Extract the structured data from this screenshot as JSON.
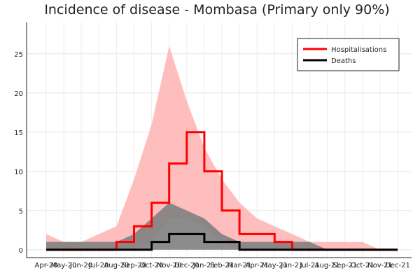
{
  "chart_data": {
    "type": "line",
    "title": "Incidence of disease - Mombasa (Primary only 90%)",
    "xlabel": "",
    "ylabel": "",
    "ylim": [
      -1,
      29
    ],
    "yticks": [
      0,
      5,
      10,
      15,
      20,
      25
    ],
    "xticks": [
      "Apr-20",
      "May-20",
      "Jun-20",
      "Jul-20",
      "Aug-20",
      "Sep-20",
      "Oct-20",
      "Nov-20",
      "Dec-20",
      "Jan-21",
      "Feb-21",
      "Mar-21",
      "Apr-21",
      "May-21",
      "Jun-21",
      "Jul-21",
      "Aug-21",
      "Sep-21",
      "Oct-21",
      "Nov-21",
      "Dec-21"
    ],
    "grid": true,
    "legend": "top-right",
    "x": [
      "Apr-20",
      "May-20",
      "Jun-20",
      "Jul-20",
      "Aug-20",
      "Sep-20",
      "Oct-20",
      "Nov-20",
      "Dec-20",
      "Jan-21",
      "Feb-21",
      "Mar-21",
      "Apr-21",
      "May-21",
      "Jun-21",
      "Jul-21",
      "Aug-21",
      "Sep-21",
      "Oct-21",
      "Nov-21",
      "Dec-21"
    ],
    "series": [
      {
        "name": "Hospitalisations",
        "color": "#ff0000",
        "band_color": "#ffb3b3",
        "values": [
          0,
          0,
          0,
          0,
          1,
          3,
          6,
          11,
          15,
          10,
          5,
          2,
          2,
          1,
          0,
          0,
          0,
          0,
          0,
          0,
          0
        ],
        "lower": [
          0,
          0,
          0,
          0,
          0,
          0,
          1,
          4,
          4,
          3,
          1,
          0,
          0,
          0,
          0,
          0,
          0,
          0,
          0,
          0,
          0
        ],
        "upper": [
          2,
          1,
          1,
          2,
          3,
          9,
          16,
          26,
          19,
          13,
          9,
          6,
          4,
          3,
          2,
          1,
          1,
          1,
          1,
          0,
          0
        ]
      },
      {
        "name": "Deaths",
        "color": "#000000",
        "band_color": "#808080",
        "values": [
          0,
          0,
          0,
          0,
          0,
          0,
          1,
          2,
          2,
          1,
          1,
          0,
          0,
          0,
          0,
          0,
          0,
          0,
          0,
          0,
          0
        ],
        "lower": [
          0,
          0,
          0,
          0,
          0,
          0,
          0,
          0,
          0,
          0,
          0,
          0,
          0,
          0,
          0,
          0,
          0,
          0,
          0,
          0,
          0
        ],
        "upper": [
          1,
          1,
          1,
          1,
          1,
          2,
          4,
          6,
          5,
          4,
          2,
          1,
          1,
          1,
          1,
          1,
          0,
          0,
          0,
          0,
          0
        ]
      }
    ]
  }
}
